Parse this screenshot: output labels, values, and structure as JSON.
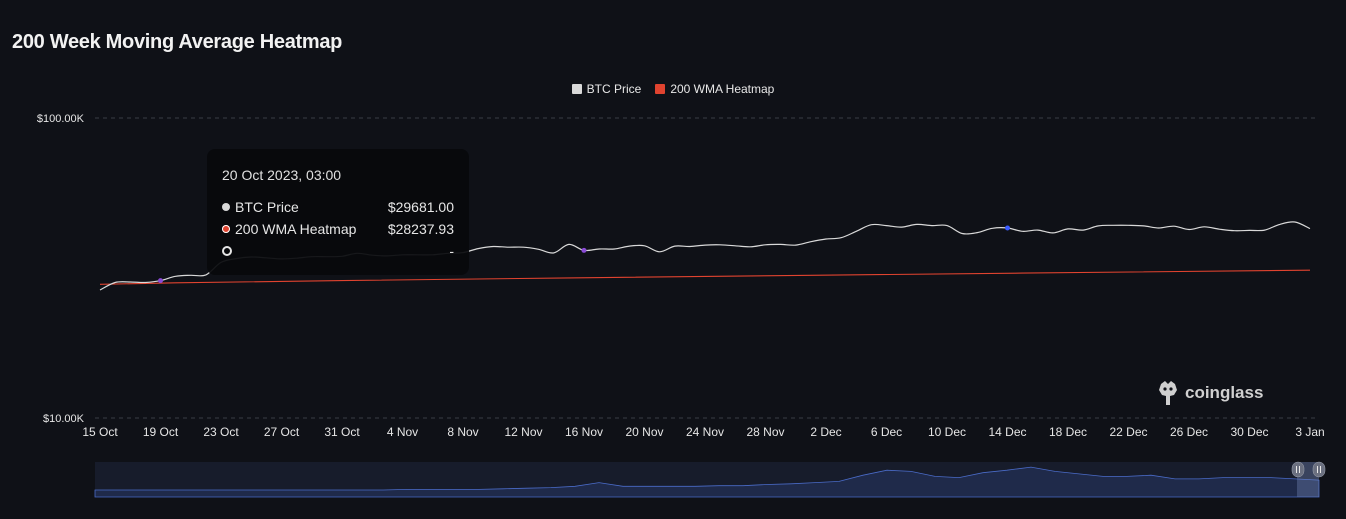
{
  "page": {
    "title": "200 Week Moving Average Heatmap"
  },
  "legend": {
    "items": [
      {
        "label": "BTC Price",
        "color": "#d9d9d9"
      },
      {
        "label": "200 WMA Heatmap",
        "color": "#e0432f"
      }
    ]
  },
  "tooltip": {
    "date": "20 Oct 2023, 03:00",
    "rows": [
      {
        "label": "BTC Price",
        "value": "$29681.00",
        "dot_color": "#d9d9d9"
      },
      {
        "label": "200 WMA Heatmap",
        "value": "$28237.93",
        "dot_color": "#e0432f"
      },
      {
        "label": "",
        "value": "-",
        "dot_color": "ring"
      }
    ]
  },
  "watermark": {
    "text": "coinglass",
    "icon": "coinglass-logo-icon"
  },
  "chart_data": {
    "type": "line",
    "title": "200 Week Moving Average Heatmap",
    "y_scale": "log",
    "ylim": [
      10000,
      100000
    ],
    "y_ticks": [
      {
        "value": 100000,
        "label": "$100.00K"
      },
      {
        "value": 10000,
        "label": "$10.00K"
      }
    ],
    "xlim": [
      "2023-10-15",
      "2024-01-03"
    ],
    "x_ticks": [
      {
        "date": "2023-10-15",
        "label": "15 Oct"
      },
      {
        "date": "2023-10-19",
        "label": "19 Oct"
      },
      {
        "date": "2023-10-23",
        "label": "23 Oct"
      },
      {
        "date": "2023-10-27",
        "label": "27 Oct"
      },
      {
        "date": "2023-10-31",
        "label": "31 Oct"
      },
      {
        "date": "2023-11-04",
        "label": "4 Nov"
      },
      {
        "date": "2023-11-08",
        "label": "8 Nov"
      },
      {
        "date": "2023-11-12",
        "label": "12 Nov"
      },
      {
        "date": "2023-11-16",
        "label": "16 Nov"
      },
      {
        "date": "2023-11-20",
        "label": "20 Nov"
      },
      {
        "date": "2023-11-24",
        "label": "24 Nov"
      },
      {
        "date": "2023-11-28",
        "label": "28 Nov"
      },
      {
        "date": "2023-12-02",
        "label": "2 Dec"
      },
      {
        "date": "2023-12-06",
        "label": "6 Dec"
      },
      {
        "date": "2023-12-10",
        "label": "10 Dec"
      },
      {
        "date": "2023-12-14",
        "label": "14 Dec"
      },
      {
        "date": "2023-12-18",
        "label": "18 Dec"
      },
      {
        "date": "2023-12-22",
        "label": "22 Dec"
      },
      {
        "date": "2023-12-26",
        "label": "26 Dec"
      },
      {
        "date": "2023-12-30",
        "label": "30 Dec"
      },
      {
        "date": "2024-01-03",
        "label": "3 Jan"
      }
    ],
    "grid": true,
    "legend_position": "top-center",
    "series": [
      {
        "name": "BTC Price",
        "color": "#d9d9d9",
        "points": [
          [
            "2023-10-15",
            26700
          ],
          [
            "2023-10-16",
            28300
          ],
          [
            "2023-10-17",
            28400
          ],
          [
            "2023-10-18",
            28300
          ],
          [
            "2023-10-19",
            28700
          ],
          [
            "2023-10-20",
            29681
          ],
          [
            "2023-10-21",
            29900
          ],
          [
            "2023-10-22",
            30000
          ],
          [
            "2023-10-23",
            33000
          ],
          [
            "2023-10-24",
            34000
          ],
          [
            "2023-10-25",
            34400
          ],
          [
            "2023-10-26",
            34200
          ],
          [
            "2023-10-27",
            33900
          ],
          [
            "2023-10-28",
            34100
          ],
          [
            "2023-10-29",
            34500
          ],
          [
            "2023-10-30",
            34500
          ],
          [
            "2023-10-31",
            34600
          ],
          [
            "2023-11-01",
            35400
          ],
          [
            "2023-11-02",
            34900
          ],
          [
            "2023-11-03",
            34700
          ],
          [
            "2023-11-04",
            35000
          ],
          [
            "2023-11-05",
            35000
          ],
          [
            "2023-11-06",
            35000
          ],
          [
            "2023-11-07",
            35400
          ],
          [
            "2023-11-08",
            35600
          ],
          [
            "2023-11-09",
            36700
          ],
          [
            "2023-11-10",
            37300
          ],
          [
            "2023-11-11",
            37100
          ],
          [
            "2023-11-12",
            37100
          ],
          [
            "2023-11-13",
            36500
          ],
          [
            "2023-11-14",
            35500
          ],
          [
            "2023-11-15",
            37900
          ],
          [
            "2023-11-16",
            36200
          ],
          [
            "2023-11-17",
            36600
          ],
          [
            "2023-11-18",
            36600
          ],
          [
            "2023-11-19",
            37400
          ],
          [
            "2023-11-20",
            37500
          ],
          [
            "2023-11-21",
            35800
          ],
          [
            "2023-11-22",
            37400
          ],
          [
            "2023-11-23",
            37300
          ],
          [
            "2023-11-24",
            37700
          ],
          [
            "2023-11-25",
            37800
          ],
          [
            "2023-11-26",
            37500
          ],
          [
            "2023-11-27",
            37200
          ],
          [
            "2023-11-28",
            37800
          ],
          [
            "2023-11-29",
            37900
          ],
          [
            "2023-11-30",
            37700
          ],
          [
            "2023-12-01",
            38700
          ],
          [
            "2023-12-02",
            39500
          ],
          [
            "2023-12-03",
            39900
          ],
          [
            "2023-12-04",
            41900
          ],
          [
            "2023-12-05",
            44100
          ],
          [
            "2023-12-06",
            43800
          ],
          [
            "2023-12-07",
            43300
          ],
          [
            "2023-12-08",
            44200
          ],
          [
            "2023-12-09",
            43800
          ],
          [
            "2023-12-10",
            43800
          ],
          [
            "2023-12-11",
            41200
          ],
          [
            "2023-12-12",
            41500
          ],
          [
            "2023-12-13",
            42900
          ],
          [
            "2023-12-14",
            43000
          ],
          [
            "2023-12-15",
            41900
          ],
          [
            "2023-12-16",
            42300
          ],
          [
            "2023-12-17",
            41400
          ],
          [
            "2023-12-18",
            42700
          ],
          [
            "2023-12-19",
            42300
          ],
          [
            "2023-12-20",
            43700
          ],
          [
            "2023-12-21",
            43900
          ],
          [
            "2023-12-22",
            43900
          ],
          [
            "2023-12-23",
            43700
          ],
          [
            "2023-12-24",
            43000
          ],
          [
            "2023-12-25",
            43600
          ],
          [
            "2023-12-26",
            42500
          ],
          [
            "2023-12-27",
            43400
          ],
          [
            "2023-12-28",
            42600
          ],
          [
            "2023-12-29",
            42100
          ],
          [
            "2023-12-30",
            42200
          ],
          [
            "2023-12-31",
            42300
          ],
          [
            "2024-01-01",
            44200
          ],
          [
            "2024-01-02",
            45000
          ],
          [
            "2024-01-03",
            42800
          ]
        ]
      },
      {
        "name": "200 WMA Heatmap",
        "color": "#e0432f",
        "points": [
          [
            "2023-10-15",
            27900
          ],
          [
            "2023-10-20",
            28237.93
          ],
          [
            "2023-10-31",
            28700
          ],
          [
            "2023-11-15",
            29300
          ],
          [
            "2023-12-01",
            29900
          ],
          [
            "2023-12-15",
            30400
          ],
          [
            "2024-01-03",
            31100
          ]
        ]
      }
    ],
    "navigator": {
      "values": [
        8,
        8,
        8,
        8,
        8,
        8,
        8,
        8,
        8,
        8,
        8,
        8,
        8,
        9,
        9,
        9,
        9,
        10,
        11,
        12,
        14,
        20,
        14,
        14,
        14,
        14,
        15,
        15,
        17,
        18,
        20,
        22,
        32,
        40,
        38,
        30,
        28,
        36,
        40,
        45,
        38,
        34,
        30,
        30,
        32,
        26,
        26,
        28,
        28,
        28,
        26,
        24
      ]
    }
  }
}
